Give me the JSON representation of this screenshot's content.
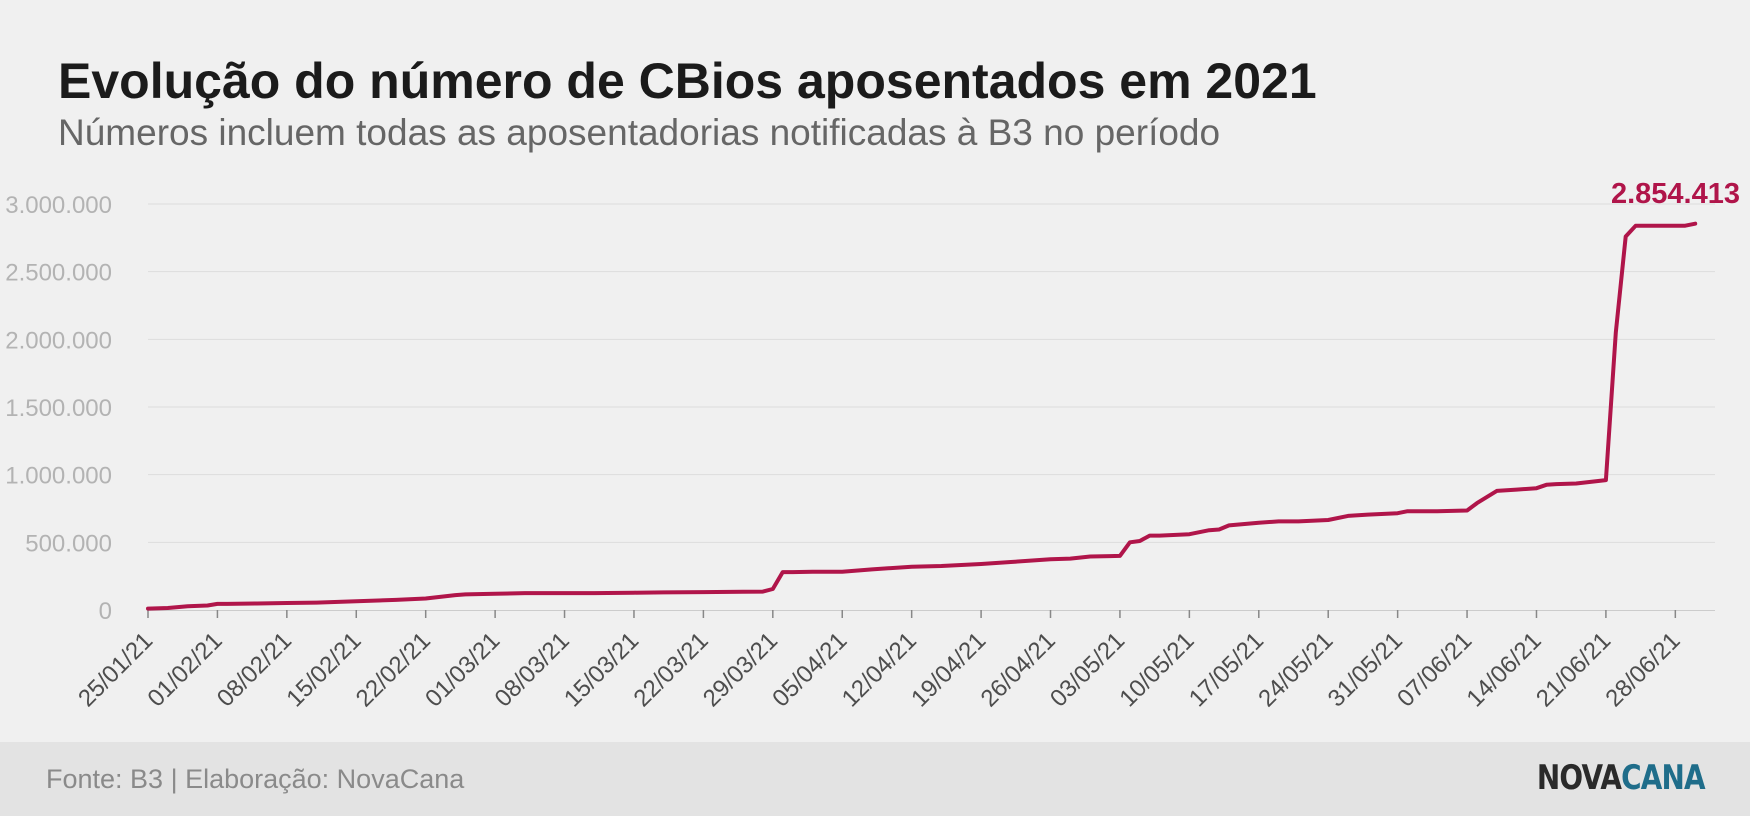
{
  "header": {
    "title": "Evolução do número de CBios aposentados em 2021",
    "subtitle": "Números incluem todas as aposentadorias notificadas à B3 no período"
  },
  "footer": {
    "source": "Fonte: B3 | Elaboração: NovaCana",
    "logo_part1": "NOVA",
    "logo_part2": "CANA"
  },
  "colors": {
    "line": "#b0154a",
    "grid": "#dddddd",
    "tick_label": "#b3b3b3",
    "axis_date_label": "#4d4d4d",
    "logo_dark": "#2a2a2a",
    "logo_accent": "#1f6d8a"
  },
  "chart_data": {
    "type": "line",
    "title": "Evolução do número de CBios aposentados em 2021",
    "subtitle": "Números incluem todas as aposentadorias notificadas à B3 no período",
    "y_ticks": [
      0,
      500000,
      1000000,
      1500000,
      2000000,
      2500000,
      3000000
    ],
    "y_tick_labels": [
      "0",
      "500.000",
      "1.000.000",
      "1.500.000",
      "2.000.000",
      "2.500.000",
      "3.000.000"
    ],
    "ylim": [
      0,
      3000000
    ],
    "x_ticks": [
      "25/01/21",
      "01/02/21",
      "08/02/21",
      "15/02/21",
      "22/02/21",
      "01/03/21",
      "08/03/21",
      "15/03/21",
      "22/03/21",
      "29/03/21",
      "05/04/21",
      "12/04/21",
      "19/04/21",
      "26/04/21",
      "03/05/21",
      "10/05/21",
      "17/05/21",
      "24/05/21",
      "31/05/21",
      "07/06/21",
      "14/06/21",
      "21/06/21",
      "28/06/21"
    ],
    "xlim": [
      "25/01/21",
      "02/07/21"
    ],
    "grid": true,
    "end_label": "2.854.413",
    "series": [
      {
        "x": [
          "25/01/21",
          "27/01/21",
          "29/01/21",
          "31/01/21",
          "01/02/21",
          "02/02/21",
          "05/02/21",
          "08/02/21",
          "11/02/21",
          "15/02/21",
          "19/02/21",
          "22/02/21",
          "25/02/21",
          "26/02/21",
          "01/03/21",
          "04/03/21",
          "08/03/21",
          "11/03/21",
          "15/03/21",
          "18/03/21",
          "22/03/21",
          "26/03/21",
          "28/03/21",
          "29/03/21",
          "30/03/21",
          "31/03/21",
          "02/04/21",
          "05/04/21",
          "08/04/21",
          "12/04/21",
          "15/04/21",
          "19/04/21",
          "22/04/21",
          "26/04/21",
          "28/04/21",
          "30/04/21",
          "02/05/21",
          "03/05/21",
          "04/05/21",
          "05/05/21",
          "06/05/21",
          "07/05/21",
          "10/05/21",
          "12/05/21",
          "13/05/21",
          "14/05/21",
          "17/05/21",
          "19/05/21",
          "21/05/21",
          "24/05/21",
          "26/05/21",
          "28/05/21",
          "31/05/21",
          "01/06/21",
          "04/06/21",
          "07/06/21",
          "08/06/21",
          "10/06/21",
          "12/06/21",
          "14/06/21",
          "15/06/21",
          "16/06/21",
          "18/06/21",
          "21/06/21",
          "22/06/21",
          "23/06/21",
          "24/06/21",
          "25/06/21",
          "26/06/21",
          "29/06/21",
          "30/06/21"
        ],
        "values": [
          10000,
          15000,
          28000,
          33000,
          45000,
          45000,
          48000,
          52000,
          55000,
          65000,
          75000,
          85000,
          110000,
          115000,
          120000,
          125000,
          125000,
          125000,
          128000,
          130000,
          132000,
          135000,
          136000,
          155000,
          280000,
          280000,
          282000,
          283000,
          300000,
          320000,
          325000,
          340000,
          355000,
          375000,
          380000,
          395000,
          398000,
          400000,
          500000,
          510000,
          550000,
          550000,
          560000,
          590000,
          595000,
          625000,
          645000,
          655000,
          655000,
          665000,
          695000,
          705000,
          715000,
          730000,
          730000,
          735000,
          790000,
          880000,
          890000,
          900000,
          925000,
          930000,
          935000,
          960000,
          2050000,
          2760000,
          2840000,
          2840000,
          2840000,
          2840000,
          2854413
        ]
      }
    ]
  }
}
